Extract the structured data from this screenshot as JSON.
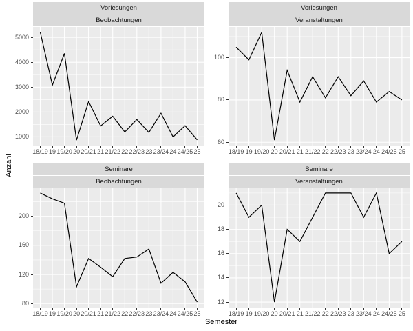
{
  "chart_data": {
    "type": "line",
    "title": "",
    "xlabel": "Semester",
    "ylabel": "Anzahl",
    "legend": "none",
    "grid": "on",
    "facet_layout": "2x2",
    "categories": [
      "18/19",
      "19",
      "19/20",
      "20",
      "20/21",
      "21",
      "21/22",
      "22",
      "22/23",
      "23",
      "23/24",
      "24",
      "24/25",
      "25"
    ],
    "panels": [
      {
        "strip1": "Vorlesungen",
        "strip2": "Beobachtungen",
        "values": [
          5200,
          3080,
          4350,
          870,
          2420,
          1440,
          1830,
          1200,
          1700,
          1180,
          1950,
          1000,
          1450,
          880
        ],
        "yticks": [
          1000,
          2000,
          3000,
          4000,
          5000
        ],
        "yminor": [
          1500,
          2500,
          3500,
          4500
        ],
        "ylim": [
          653,
          5417
        ]
      },
      {
        "strip1": "Vorlesungen",
        "strip2": "Veranstaltungen",
        "values": [
          105,
          99,
          112,
          61,
          94,
          79,
          91,
          81,
          91,
          82,
          89,
          79,
          84,
          80
        ],
        "yticks": [
          60,
          80,
          100
        ],
        "yminor": [
          70,
          90,
          110
        ],
        "ylim": [
          58.45,
          114.55
        ]
      },
      {
        "strip1": "Seminare",
        "strip2": "Beobachtungen",
        "values": [
          232,
          224,
          218,
          103,
          142,
          130,
          117,
          142,
          144,
          155,
          108,
          123,
          110,
          82
        ],
        "yticks": [
          80,
          120,
          160,
          200
        ],
        "yminor": [
          100,
          140,
          180,
          220
        ],
        "ylim": [
          74.5,
          239.5
        ]
      },
      {
        "strip1": "Seminare",
        "strip2": "Veranstaltungen",
        "values": [
          21,
          19,
          20,
          12,
          18,
          17,
          19,
          21,
          21,
          21,
          19,
          21,
          16,
          17
        ],
        "yticks": [
          12,
          14,
          16,
          18,
          20
        ],
        "yminor": [
          13,
          15,
          17,
          19,
          21
        ],
        "ylim": [
          11.55,
          21.45
        ]
      }
    ],
    "colors": {
      "panel_bg": "#EBEBEB",
      "strip_bg": "#D9D9D9",
      "grid": "#FFFFFF",
      "line": "#000000",
      "tick_label": "#4D4D4D",
      "tick_mark": "#333333",
      "strip_text": "#1A1A1A",
      "axis_title": "#000000"
    }
  }
}
